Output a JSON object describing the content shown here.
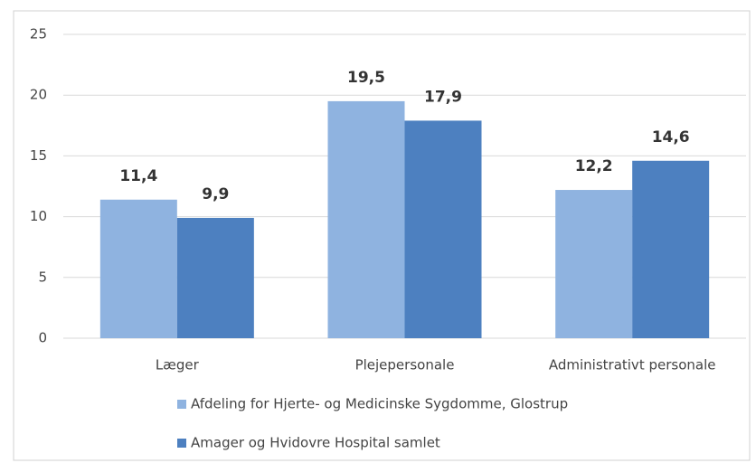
{
  "chart_data": {
    "type": "bar",
    "categories": [
      "Læger",
      "Plejepersonale",
      "Administrativt personale"
    ],
    "series": [
      {
        "name": "Afdeling for Hjerte- og Medicinske Sygdomme, Glostrup",
        "color": "#8fb3e0",
        "values": [
          11.4,
          19.5,
          12.2
        ],
        "value_labels": [
          "11,4",
          "19,5",
          "12,2"
        ]
      },
      {
        "name": "Amager og Hvidovre Hospital samlet",
        "color": "#4d80c0",
        "values": [
          9.9,
          17.9,
          14.6
        ],
        "value_labels": [
          "9,9",
          "17,9",
          "14,6"
        ]
      }
    ],
    "ylim": [
      0,
      25
    ],
    "yticks": [
      0,
      5,
      10,
      15,
      20,
      25
    ],
    "grid": true,
    "legend": "bottom"
  }
}
